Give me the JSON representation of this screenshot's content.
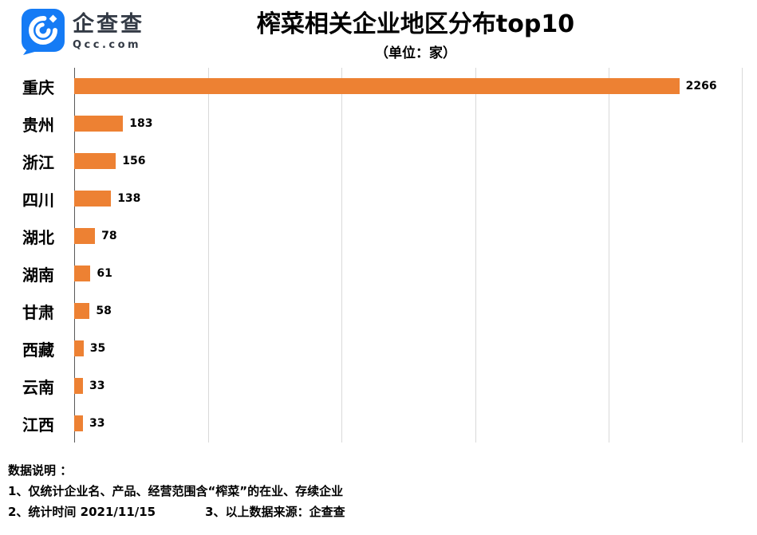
{
  "header": {
    "logo": {
      "brand_name": "企查查",
      "brand_domain": "Qcc.com"
    },
    "title": "榨菜相关企业地区分布top10",
    "subtitle": "（单位：家）"
  },
  "chart_data": {
    "type": "bar",
    "orientation": "horizontal",
    "title": "榨菜相关企业地区分布top10",
    "subtitle": "（单位：家）",
    "categories": [
      "重庆",
      "贵州",
      "浙江",
      "四川",
      "湖北",
      "湖南",
      "甘肃",
      "西藏",
      "云南",
      "江西"
    ],
    "values": [
      2266,
      183,
      156,
      138,
      78,
      61,
      58,
      35,
      33,
      33
    ],
    "xlim": [
      0,
      2500
    ],
    "gridline_interval": 500,
    "grid": true,
    "legend": false,
    "bar_color": "#ED8133"
  },
  "footer": {
    "notes_title": "数据说明 ：",
    "note1": "1、仅统计企业名、产品、经营范围含“榨菜”的在业、存续企业",
    "note2": "2、统计时间 2021/11/15",
    "note3": "3、以上数据来源：企查查"
  },
  "colors": {
    "bar": "#ED8133",
    "logo_blue": "#157BF5",
    "gridline": "#d9d9d9"
  }
}
